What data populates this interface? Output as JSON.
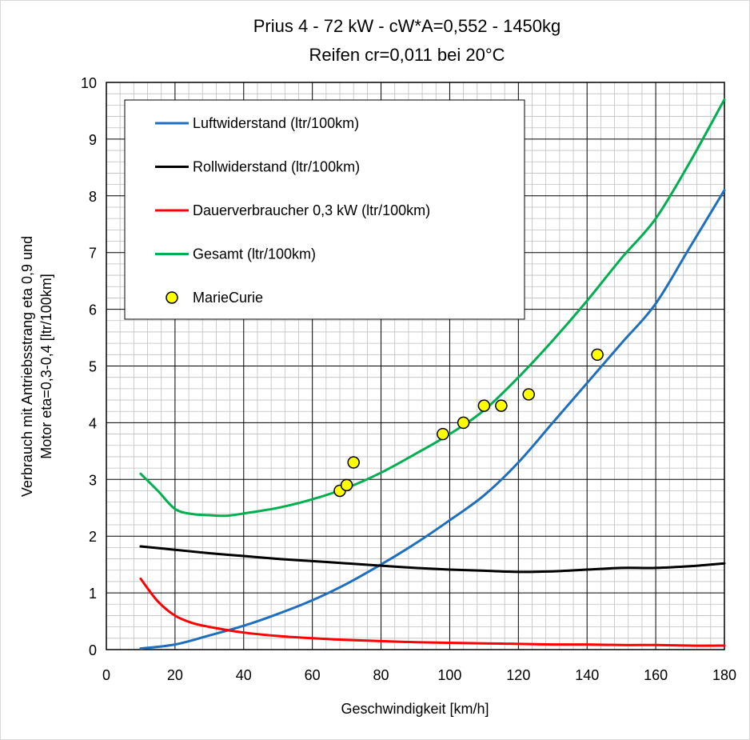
{
  "chart_data": {
    "type": "line",
    "title": "Prius 4 - 72 kW - cW*A=0,552 - 1450kg",
    "subtitle": "Reifen cr=0,011  bei 20°C",
    "xlabel": "Geschwindigkeit [km/h]",
    "ylabel_line1": "Verbrauch mit Antriebsstrang eta 0,9 und",
    "ylabel_line2": "Motor eta=0,3-0,4 [ltr/100km]",
    "xlim": [
      0,
      180
    ],
    "ylim": [
      0,
      10
    ],
    "x_ticks": [
      "0",
      "20",
      "40",
      "60",
      "80",
      "100",
      "120",
      "140",
      "160",
      "180"
    ],
    "y_ticks": [
      "0",
      "1",
      "2",
      "3",
      "4",
      "5",
      "6",
      "7",
      "8",
      "9",
      "10"
    ],
    "grid": true,
    "legend_position": "top-left",
    "series": [
      {
        "name": "Luftwiderstand (ltr/100km)",
        "kind": "line",
        "color": "#1f6fbf",
        "x": [
          10,
          20,
          30,
          40,
          50,
          60,
          70,
          80,
          90,
          100,
          110,
          120,
          130,
          140,
          150,
          160,
          170,
          180
        ],
        "y": [
          0.02,
          0.09,
          0.25,
          0.42,
          0.63,
          0.87,
          1.16,
          1.5,
          1.87,
          2.28,
          2.72,
          3.3,
          4.0,
          4.7,
          5.4,
          6.1,
          7.1,
          8.1
        ]
      },
      {
        "name": "Rollwiderstand (ltr/100km)",
        "kind": "line",
        "color": "#000000",
        "x": [
          10,
          20,
          30,
          40,
          50,
          60,
          70,
          80,
          90,
          100,
          110,
          120,
          130,
          140,
          150,
          160,
          170,
          180
        ],
        "y": [
          1.82,
          1.76,
          1.7,
          1.65,
          1.6,
          1.56,
          1.52,
          1.48,
          1.44,
          1.41,
          1.39,
          1.37,
          1.38,
          1.41,
          1.44,
          1.44,
          1.47,
          1.52
        ]
      },
      {
        "name": "Dauerverbraucher 0,3 kW (ltr/100km)",
        "kind": "line",
        "color": "#ff0000",
        "x": [
          10,
          15,
          20,
          25,
          30,
          40,
          50,
          60,
          70,
          80,
          90,
          100,
          110,
          120,
          130,
          140,
          150,
          160,
          170,
          180
        ],
        "y": [
          1.25,
          0.85,
          0.6,
          0.47,
          0.4,
          0.3,
          0.24,
          0.2,
          0.17,
          0.15,
          0.13,
          0.12,
          0.11,
          0.1,
          0.09,
          0.09,
          0.08,
          0.08,
          0.07,
          0.07
        ]
      },
      {
        "name": "Gesamt (ltr/100km)",
        "kind": "line",
        "color": "#00b050",
        "x": [
          10,
          15,
          20,
          25,
          30,
          35,
          40,
          50,
          60,
          70,
          80,
          90,
          100,
          110,
          120,
          130,
          140,
          150,
          160,
          170,
          180
        ],
        "y": [
          3.1,
          2.8,
          2.48,
          2.39,
          2.37,
          2.36,
          2.4,
          2.5,
          2.65,
          2.85,
          3.12,
          3.45,
          3.8,
          4.22,
          4.8,
          5.45,
          6.15,
          6.9,
          7.6,
          8.6,
          9.7
        ]
      },
      {
        "name": "MarieCurie",
        "kind": "scatter",
        "color": "#ffff00",
        "x": [
          68,
          70,
          72,
          98,
          104,
          110,
          115,
          123,
          143
        ],
        "y": [
          2.8,
          2.9,
          3.3,
          3.8,
          4.0,
          4.3,
          4.3,
          4.5,
          5.2
        ]
      }
    ]
  }
}
